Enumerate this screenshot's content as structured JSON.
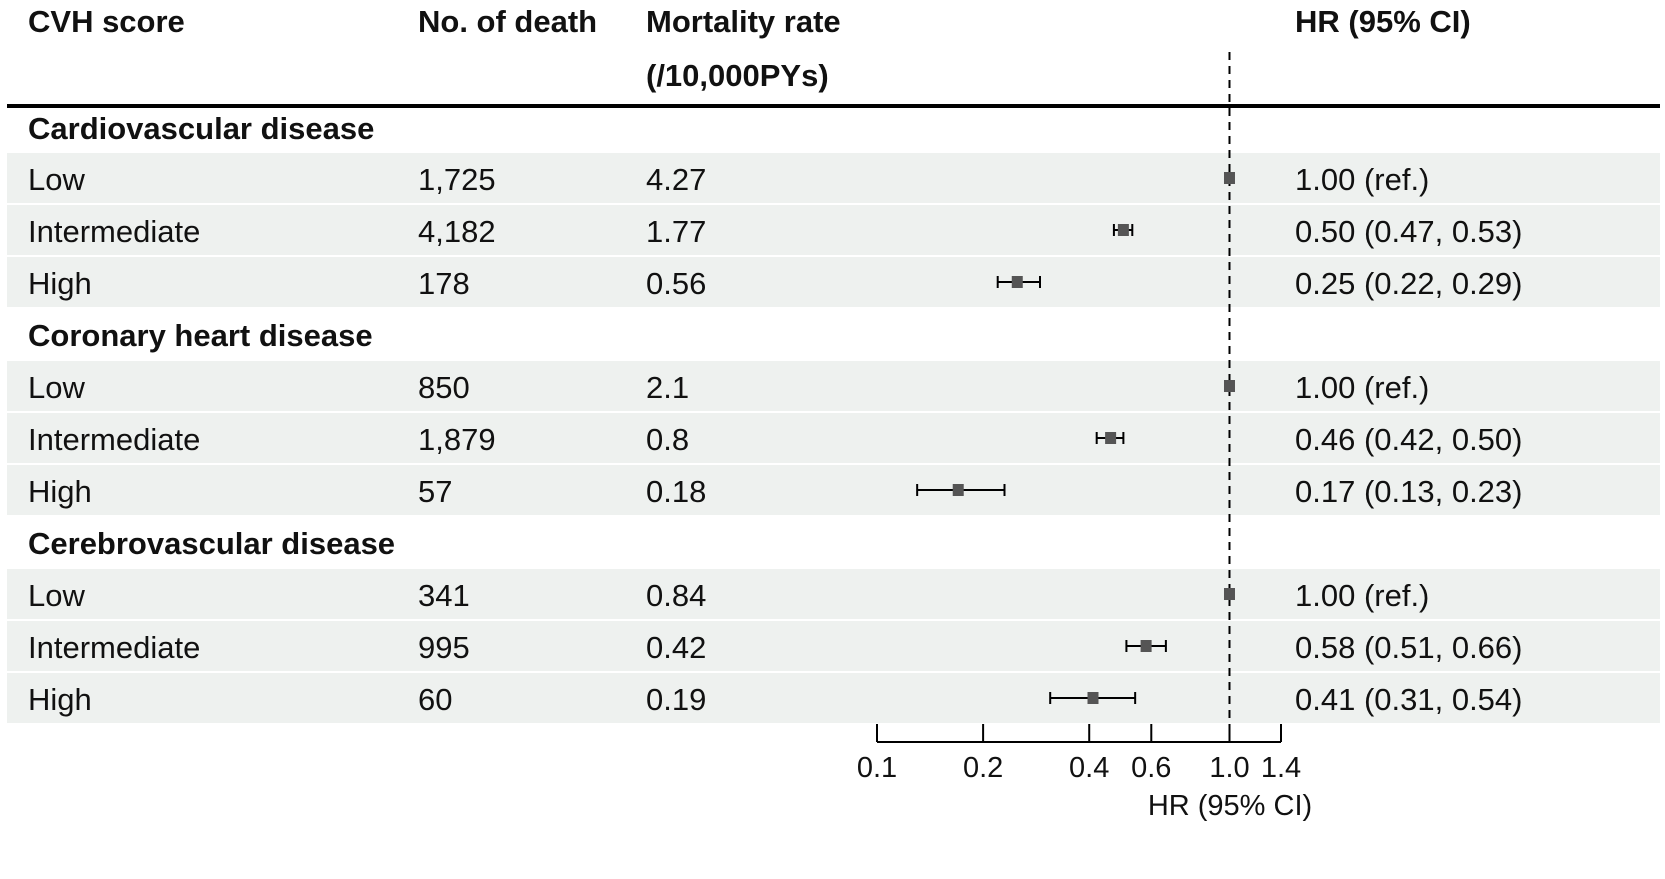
{
  "table": {
    "headers": {
      "score": "CVH score",
      "deaths": "No. of death",
      "rate_line1": "Mortality rate",
      "rate_line2": "(/10,000PYs)",
      "hr": "HR (95% CI)"
    },
    "groups": [
      {
        "name": "Cardiovascular disease",
        "rows": [
          {
            "level": "Low",
            "deaths": "1,725",
            "rate": "4.27",
            "hr_text": "1.00 (ref.)"
          },
          {
            "level": "Intermediate",
            "deaths": "4,182",
            "rate": "1.77",
            "hr_text": "0.50 (0.47, 0.53)"
          },
          {
            "level": "High",
            "deaths": "178",
            "rate": "0.56",
            "hr_text": "0.25 (0.22, 0.29)"
          }
        ]
      },
      {
        "name": "Coronary heart disease",
        "rows": [
          {
            "level": "Low",
            "deaths": "850",
            "rate": "2.1",
            "hr_text": "1.00 (ref.)"
          },
          {
            "level": "Intermediate",
            "deaths": "1,879",
            "rate": "0.8",
            "hr_text": "0.46 (0.42, 0.50)"
          },
          {
            "level": "High",
            "deaths": "57",
            "rate": "0.18",
            "hr_text": "0.17 (0.13, 0.23)"
          }
        ]
      },
      {
        "name": "Cerebrovascular disease",
        "rows": [
          {
            "level": "Low",
            "deaths": "341",
            "rate": "0.84",
            "hr_text": "1.00 (ref.)"
          },
          {
            "level": "Intermediate",
            "deaths": "995",
            "rate": "0.42",
            "hr_text": "0.58 (0.51, 0.66)"
          },
          {
            "level": "High",
            "deaths": "60",
            "rate": "0.19",
            "hr_text": "0.41 (0.31, 0.54)"
          }
        ]
      }
    ]
  },
  "chart_data": {
    "type": "forest",
    "scale": "log",
    "reference_line": 1.0,
    "xlabel": "HR (95% CI)",
    "xlim": [
      0.1,
      1.4
    ],
    "ticks": [
      {
        "value": 0.1,
        "label": "0.1"
      },
      {
        "value": 0.2,
        "label": "0.2"
      },
      {
        "value": 0.4,
        "label": "0.4"
      },
      {
        "value": 0.6,
        "label": "0.6"
      },
      {
        "value": 1.0,
        "label": "1.0"
      },
      {
        "value": 1.4,
        "label": "1.4"
      }
    ],
    "series": [
      {
        "group": "Cardiovascular disease",
        "level": "Low",
        "hr": 1.0,
        "lower": 1.0,
        "upper": 1.0
      },
      {
        "group": "Cardiovascular disease",
        "level": "Intermediate",
        "hr": 0.5,
        "lower": 0.47,
        "upper": 0.53
      },
      {
        "group": "Cardiovascular disease",
        "level": "High",
        "hr": 0.25,
        "lower": 0.22,
        "upper": 0.29
      },
      {
        "group": "Coronary heart disease",
        "level": "Low",
        "hr": 1.0,
        "lower": 1.0,
        "upper": 1.0
      },
      {
        "group": "Coronary heart disease",
        "level": "Intermediate",
        "hr": 0.46,
        "lower": 0.42,
        "upper": 0.5
      },
      {
        "group": "Coronary heart disease",
        "level": "High",
        "hr": 0.17,
        "lower": 0.13,
        "upper": 0.23
      },
      {
        "group": "Cerebrovascular disease",
        "level": "Low",
        "hr": 1.0,
        "lower": 1.0,
        "upper": 1.0
      },
      {
        "group": "Cerebrovascular disease",
        "level": "Intermediate",
        "hr": 0.58,
        "lower": 0.51,
        "upper": 0.66
      },
      {
        "group": "Cerebrovascular disease",
        "level": "High",
        "hr": 0.41,
        "lower": 0.31,
        "upper": 0.54
      }
    ],
    "colors": {
      "marker": "#555555",
      "line": "#000000",
      "band": "#eef1ef"
    }
  }
}
